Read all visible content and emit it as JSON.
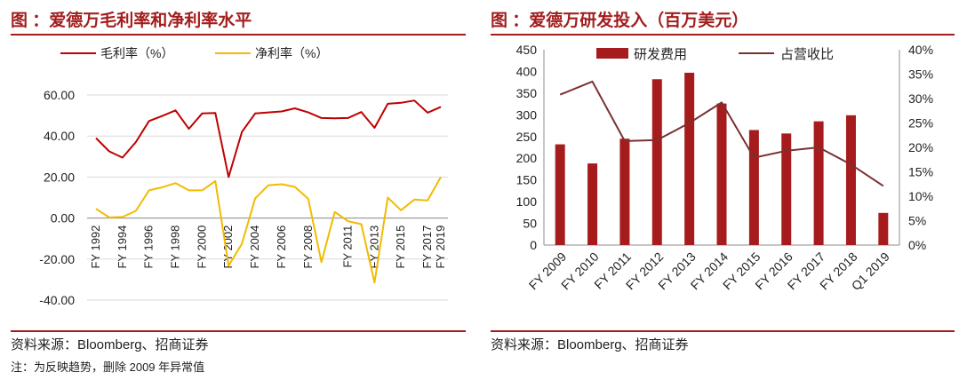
{
  "left": {
    "title": "图 ：爱德万毛利率和净利率水平",
    "source": "资料来源：Bloomberg、招商证券",
    "note": "注：为反映趋势，删除 2009 年异常值"
  },
  "right": {
    "title": "图 ：爱德万研发投入（百万美元）",
    "source": "资料来源：Bloomberg、招商证券"
  },
  "colors": {
    "accent": "#a31d1d",
    "gross": "#c00000",
    "net": "#f2bb00",
    "bar": "#a61c1c",
    "ratio": "#7a3030"
  },
  "chart_data": [
    {
      "type": "line",
      "x_tick_labels": [
        "FY 1992",
        "FY 1994",
        "FY 1996",
        "FY 1998",
        "FY 2000",
        "FY 2002",
        "FY 2004",
        "FY 2006",
        "FY 2008",
        "FY 2011",
        "FY 2013",
        "FY 2015",
        "FY 2017",
        "FY 2019"
      ],
      "ylim": [
        -40,
        60
      ],
      "y_ticks": [
        "60.00",
        "40.00",
        "20.00",
        "0.00",
        "-20.00",
        "-40.00"
      ],
      "series": [
        {
          "name": "毛利率（%）",
          "values": [
            39,
            32.5,
            29.5,
            37,
            47.3,
            49.8,
            52.5,
            43.5,
            51,
            51.2,
            20,
            42,
            51,
            51.5,
            52,
            53.5,
            51.5,
            48.8,
            48.6,
            48.8,
            51.7,
            44,
            55.7,
            56.2,
            57.3,
            51.4,
            54.2
          ]
        },
        {
          "name": "净利率（%）",
          "values": [
            4.5,
            0.3,
            0.5,
            3.5,
            13.5,
            15,
            17,
            13.5,
            13.5,
            18,
            -23.3,
            -12.5,
            9.6,
            16,
            16.5,
            15.2,
            9.4,
            -21.5,
            3,
            -1.5,
            -3,
            -31.5,
            10,
            3.8,
            9,
            8.6,
            20
          ]
        }
      ]
    },
    {
      "type": "bar",
      "categories": [
        "FY 2009",
        "FY 2010",
        "FY 2011",
        "FY 2012",
        "FY 2013",
        "FY 2014",
        "FY 2015",
        "FY 2016",
        "FY 2017",
        "FY 2018",
        "Q1 2019"
      ],
      "ylim": [
        0,
        450
      ],
      "y_ticks": [
        "450",
        "400",
        "350",
        "300",
        "250",
        "200",
        "150",
        "100",
        "50",
        "0"
      ],
      "y2lim": [
        0,
        40
      ],
      "y2_ticks": [
        "40%",
        "35%",
        "30%",
        "25%",
        "20%",
        "15%",
        "10%",
        "5%",
        "0%"
      ],
      "series": [
        {
          "name": "研发费用",
          "type": "bar",
          "axis": "left",
          "values": [
            232,
            188,
            245,
            382,
            397,
            326,
            265,
            257,
            285,
            299,
            74
          ]
        },
        {
          "name": "占营收比",
          "type": "line",
          "axis": "right",
          "values": [
            30.8,
            33.5,
            21.3,
            21.5,
            25,
            29.2,
            17.9,
            19.3,
            20,
            16.5,
            12.1
          ]
        }
      ]
    }
  ]
}
